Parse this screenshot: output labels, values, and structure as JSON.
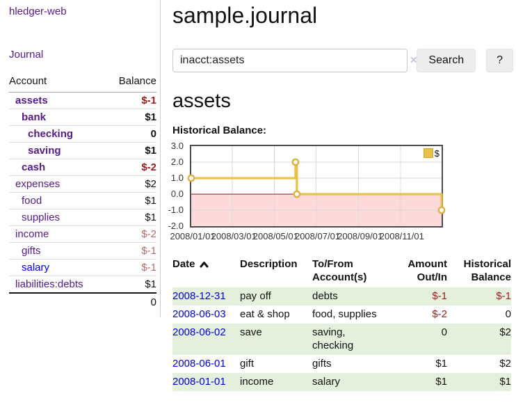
{
  "app": {
    "brand": "hledger-web",
    "nav_journal": "Journal"
  },
  "header": {
    "title": "sample.journal"
  },
  "search": {
    "value": "inacct:assets",
    "clear_icon": "✕",
    "button": "Search",
    "help_button": "?"
  },
  "account_page": {
    "heading": "assets",
    "chart_title": "Historical Balance:"
  },
  "sidebar": {
    "columns": {
      "account": "Account",
      "balance": "Balance"
    },
    "accounts": [
      {
        "name": "assets",
        "depth": 1,
        "bold": true,
        "balance": "$-1",
        "balance_style": "neg-strong",
        "link_color": "purple"
      },
      {
        "name": "bank",
        "depth": 2,
        "bold": true,
        "balance": "$1",
        "balance_style": "pos",
        "link_color": "purple"
      },
      {
        "name": "checking",
        "depth": 3,
        "bold": true,
        "balance": "0",
        "balance_style": "pos",
        "link_color": "purple"
      },
      {
        "name": "saving",
        "depth": 3,
        "bold": true,
        "balance": "$1",
        "balance_style": "pos",
        "link_color": "purple"
      },
      {
        "name": "cash",
        "depth": 2,
        "bold": true,
        "balance": "$-2",
        "balance_style": "neg-strong",
        "link_color": "purple"
      },
      {
        "name": "expenses",
        "depth": 1,
        "bold": false,
        "balance": "$2",
        "balance_style": "pos",
        "link_color": "purple"
      },
      {
        "name": "food",
        "depth": 2,
        "bold": false,
        "balance": "$1",
        "balance_style": "pos",
        "link_color": "purple"
      },
      {
        "name": "supplies",
        "depth": 2,
        "bold": false,
        "balance": "$1",
        "balance_style": "pos",
        "link_color": "purple"
      },
      {
        "name": "income",
        "depth": 1,
        "bold": false,
        "balance": "$-2",
        "balance_style": "neg-soft",
        "link_color": "purple"
      },
      {
        "name": "gifts",
        "depth": 2,
        "bold": false,
        "balance": "$-1",
        "balance_style": "neg-soft",
        "link_color": "purple"
      },
      {
        "name": "salary",
        "depth": 2,
        "bold": false,
        "balance": "$-1",
        "balance_style": "neg-soft",
        "link_color": "blue"
      },
      {
        "name": "liabilities:debts",
        "depth": 1,
        "bold": false,
        "balance": "$1",
        "balance_style": "pos",
        "link_color": "purple"
      }
    ],
    "total": "0"
  },
  "chart_data": {
    "type": "line",
    "title": "Historical Balance",
    "step": true,
    "series": [
      {
        "name": "$",
        "points": [
          {
            "date": "2008-01-01",
            "value": 1
          },
          {
            "date": "2008-06-01",
            "value": 2
          },
          {
            "date": "2008-06-03",
            "value": 0
          },
          {
            "date": "2008-12-31",
            "value": -1
          }
        ]
      }
    ],
    "x_range": [
      "2008-01-01",
      "2008-12-31"
    ],
    "x_ticks": [
      "2008/01/01",
      "2008/03/01",
      "2008/05/01",
      "2008/07/01",
      "2008/09/01",
      "2008/11/01"
    ],
    "y_ticks": [
      "3.0",
      "2.0",
      "1.0",
      "0.0",
      "-1.0",
      "-2.0"
    ],
    "ylim": [
      -2,
      3
    ],
    "grid": true,
    "legend": {
      "label": "$",
      "position": "top-right"
    },
    "colors": {
      "line": "#e8c14a",
      "marker_stroke": "#dfb042",
      "negative_region": "#fcdada",
      "zero_line": "#8b1010",
      "grid": "#d9d9d9"
    }
  },
  "register": {
    "columns": [
      {
        "line1": "Date",
        "line2": "",
        "sorted": "ascending"
      },
      {
        "line1": "Description",
        "line2": ""
      },
      {
        "line1": "To/From",
        "line2": "Account(s)"
      },
      {
        "line1": "Amount",
        "line2": "Out/In"
      },
      {
        "line1": "Historical",
        "line2": "Balance"
      }
    ],
    "rows": [
      {
        "date": "2008-12-31",
        "description": "pay off",
        "accounts": "debts",
        "amount": "$-1",
        "balance": "$-1",
        "shade": true
      },
      {
        "date": "2008-06-03",
        "description": "eat & shop",
        "accounts": "food, supplies",
        "amount": "$-2",
        "balance": "0",
        "shade": false
      },
      {
        "date": "2008-06-02",
        "description": "save",
        "accounts": "saving,\nchecking",
        "amount": "0",
        "balance": "$2",
        "shade": true
      },
      {
        "date": "2008-06-01",
        "description": "gift",
        "accounts": "gifts",
        "amount": "$1",
        "balance": "$2",
        "shade": false
      },
      {
        "date": "2008-01-01",
        "description": "income",
        "accounts": "salary",
        "amount": "$1",
        "balance": "$1",
        "shade": true
      }
    ]
  },
  "colors": {
    "link_purple": "#551a8b",
    "link_blue": "#0000dd",
    "negative": "#a01c1c",
    "negative_soft": "#b56a6a",
    "row_green": "#e4f0dc"
  }
}
